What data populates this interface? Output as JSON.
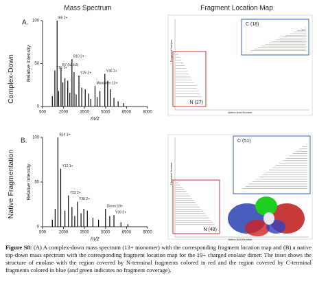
{
  "headers": [
    "Mass Spectrum",
    "Fragment Location Map"
  ],
  "panels": [
    {
      "letter": "A.",
      "side_label": "Complex-Down",
      "n_label": "N (27)",
      "c_label": "C (18)"
    },
    {
      "letter": "B.",
      "side_label": "Native Fragmentation",
      "n_label": "N (48)",
      "c_label": "C (51)"
    }
  ],
  "spectrum_axes": {
    "y_label": "Relative Intensity",
    "x_label": "m/z",
    "xlim": [
      500,
      8000
    ],
    "xticks": [
      500,
      2000,
      3500,
      5000,
      6500,
      8000
    ],
    "ylim": [
      0,
      100
    ],
    "yticks": [
      0,
      50,
      100
    ]
  },
  "map_axes": {
    "y_label": "Fragment Number",
    "x_label": "Amino Acid Number"
  },
  "spectra": [
    {
      "peaks": [
        {
          "mz": 1540,
          "intensity": 100,
          "label": "B9 2+"
        },
        {
          "mz": 1380,
          "intensity": 42,
          "label": "Y16 1+"
        },
        {
          "mz": 1820,
          "intensity": 45,
          "label": "B7 (b2,b3)"
        },
        {
          "mz": 1950,
          "intensity": 28
        },
        {
          "mz": 2100,
          "intensity": 33
        },
        {
          "mz": 2300,
          "intensity": 30
        },
        {
          "mz": 2600,
          "intensity": 55,
          "label": "B10 2+"
        },
        {
          "mz": 2750,
          "intensity": 40
        },
        {
          "mz": 3100,
          "intensity": 36,
          "label": "Y25 2+"
        },
        {
          "mz": 3300,
          "intensity": 22
        },
        {
          "mz": 3550,
          "intensity": 20
        },
        {
          "mz": 3800,
          "intensity": 15
        },
        {
          "mz": 4250,
          "intensity": 24,
          "label": "Monomer 13+"
        },
        {
          "mz": 4600,
          "intensity": 18
        },
        {
          "mz": 4950,
          "intensity": 38,
          "label": "Y36 2+"
        },
        {
          "mz": 5150,
          "intensity": 30
        },
        {
          "mz": 5350,
          "intensity": 20
        },
        {
          "mz": 5600,
          "intensity": 10
        },
        {
          "mz": 1200,
          "intensity": 12
        },
        {
          "mz": 1650,
          "intensity": 18
        },
        {
          "mz": 2450,
          "intensity": 16
        },
        {
          "mz": 2900,
          "intensity": 14
        },
        {
          "mz": 3950,
          "intensity": 9
        },
        {
          "mz": 4400,
          "intensity": 11
        },
        {
          "mz": 5900,
          "intensity": 6
        },
        {
          "mz": 6300,
          "intensity": 4
        }
      ]
    },
    {
      "peaks": [
        {
          "mz": 1600,
          "intensity": 100,
          "label": "B14 1+"
        },
        {
          "mz": 1800,
          "intensity": 65,
          "label": "Y12 1+"
        },
        {
          "mz": 1400,
          "intensity": 20
        },
        {
          "mz": 2100,
          "intensity": 18
        },
        {
          "mz": 2350,
          "intensity": 35,
          "label": "Y23 2+"
        },
        {
          "mz": 2600,
          "intensity": 22
        },
        {
          "mz": 3000,
          "intensity": 28,
          "label": "Y30 2+"
        },
        {
          "mz": 3250,
          "intensity": 15
        },
        {
          "mz": 3450,
          "intensity": 20
        },
        {
          "mz": 3700,
          "intensity": 18
        },
        {
          "mz": 4100,
          "intensity": 10
        },
        {
          "mz": 4500,
          "intensity": 8
        },
        {
          "mz": 5000,
          "intensity": 20,
          "label": "Dimer 19+"
        },
        {
          "mz": 5300,
          "intensity": 12
        },
        {
          "mz": 5600,
          "intensity": 13,
          "label": "Y39 2+"
        },
        {
          "mz": 2800,
          "intensity": 12
        },
        {
          "mz": 1200,
          "intensity": 8
        },
        {
          "mz": 6100,
          "intensity": 5
        },
        {
          "mz": 6600,
          "intensity": 3
        }
      ]
    }
  ],
  "caption": {
    "label": "Figure S8:",
    "text": "(A) A complex-down mass spectrum (13+ monomer) with the corresponding fragment location map and (B) a native top-down mass spectrum with the corresponding fragment location map for the 19+ charged enolase dimer. The inset shows the structure of enolase with the region covered by N-terminal fragments colored in red and the region covered by C-terminal fragments colored in blue (and green indicates no fragment coverage)."
  }
}
